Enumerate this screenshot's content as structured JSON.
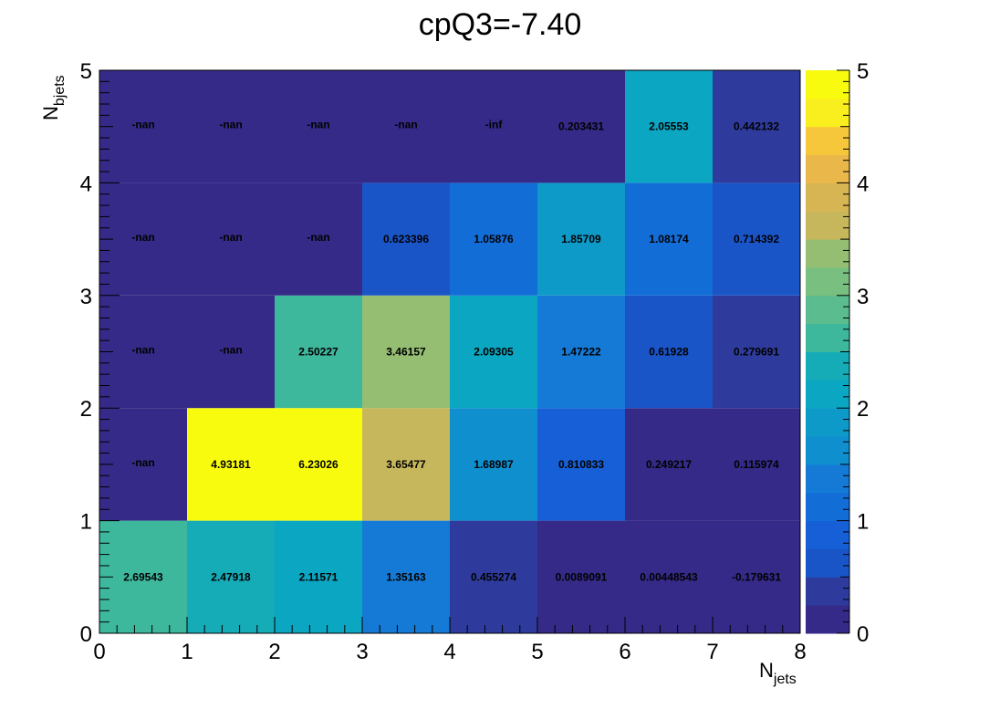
{
  "chart_data": {
    "type": "heatmap",
    "title": "cpQ3=-7.40",
    "xlabel": {
      "main": "N",
      "sub": "jets"
    },
    "ylabel": {
      "main": "N",
      "sub": "bjets"
    },
    "xlim": [
      0,
      8
    ],
    "ylim": [
      0,
      5
    ],
    "x_ticks": [
      "0",
      "1",
      "2",
      "3",
      "4",
      "5",
      "6",
      "7",
      "8"
    ],
    "y_ticks": [
      "0",
      "1",
      "2",
      "3",
      "4",
      "5"
    ],
    "x_bin_edges": [
      0,
      1,
      2,
      3,
      4,
      5,
      6,
      7,
      8
    ],
    "y_bin_edges": [
      0,
      1,
      2,
      3,
      4,
      5
    ],
    "colorbar": {
      "min": 0,
      "max": 5,
      "ncolors": 20,
      "ticks": [
        "0",
        "1",
        "2",
        "3",
        "4",
        "5"
      ],
      "palette": [
        "#352a87",
        "#2e3b9c",
        "#2a49ae",
        "#1a55c8",
        "#165fd6",
        "#126dd7",
        "#157ad6",
        "#1786d3",
        "#108fcf",
        "#0e9ac9",
        "#0ba6c2",
        "#15acb8",
        "#26b2aa",
        "#3eb89d",
        "#5bbc8f",
        "#78bf80",
        "#95be72",
        "#b1bb66",
        "#c7b75c",
        "#d8b553",
        "#eab84a",
        "#f7c73b",
        "#fbd92e",
        "#f9ee1e",
        "#f9fb0e"
      ]
    },
    "cells": [
      {
        "x": 0.5,
        "y": 0.5,
        "value": 2.69543,
        "label": "2.69543"
      },
      {
        "x": 1.5,
        "y": 0.5,
        "value": 2.47918,
        "label": "2.47918"
      },
      {
        "x": 2.5,
        "y": 0.5,
        "value": 2.11571,
        "label": "2.11571"
      },
      {
        "x": 3.5,
        "y": 0.5,
        "value": 1.35163,
        "label": "1.35163"
      },
      {
        "x": 4.5,
        "y": 0.5,
        "value": 0.455274,
        "label": "0.455274"
      },
      {
        "x": 5.5,
        "y": 0.5,
        "value": 0.0089091,
        "label": "0.0089091"
      },
      {
        "x": 6.5,
        "y": 0.5,
        "value": 0.00448543,
        "label": "0.00448543"
      },
      {
        "x": 7.5,
        "y": 0.5,
        "value": -0.179631,
        "label": "-0.179631"
      },
      {
        "x": 0.5,
        "y": 1.5,
        "value": null,
        "label": "-nan"
      },
      {
        "x": 1.5,
        "y": 1.5,
        "value": 4.93181,
        "label": "4.93181"
      },
      {
        "x": 2.5,
        "y": 1.5,
        "value": 6.23026,
        "label": "6.23026"
      },
      {
        "x": 3.5,
        "y": 1.5,
        "value": 3.65477,
        "label": "3.65477"
      },
      {
        "x": 4.5,
        "y": 1.5,
        "value": 1.68987,
        "label": "1.68987"
      },
      {
        "x": 5.5,
        "y": 1.5,
        "value": 0.810833,
        "label": "0.810833"
      },
      {
        "x": 6.5,
        "y": 1.5,
        "value": 0.249217,
        "label": "0.249217"
      },
      {
        "x": 7.5,
        "y": 1.5,
        "value": 0.115974,
        "label": "0.115974"
      },
      {
        "x": 0.5,
        "y": 2.5,
        "value": null,
        "label": "-nan"
      },
      {
        "x": 1.5,
        "y": 2.5,
        "value": null,
        "label": "-nan"
      },
      {
        "x": 2.5,
        "y": 2.5,
        "value": 2.50227,
        "label": "2.50227"
      },
      {
        "x": 3.5,
        "y": 2.5,
        "value": 3.46157,
        "label": "3.46157"
      },
      {
        "x": 4.5,
        "y": 2.5,
        "value": 2.09305,
        "label": "2.09305"
      },
      {
        "x": 5.5,
        "y": 2.5,
        "value": 1.47222,
        "label": "1.47222"
      },
      {
        "x": 6.5,
        "y": 2.5,
        "value": 0.61928,
        "label": "0.61928"
      },
      {
        "x": 7.5,
        "y": 2.5,
        "value": 0.279691,
        "label": "0.279691"
      },
      {
        "x": 0.5,
        "y": 3.5,
        "value": null,
        "label": "-nan"
      },
      {
        "x": 1.5,
        "y": 3.5,
        "value": null,
        "label": "-nan"
      },
      {
        "x": 2.5,
        "y": 3.5,
        "value": null,
        "label": "-nan"
      },
      {
        "x": 3.5,
        "y": 3.5,
        "value": 0.623396,
        "label": "0.623396"
      },
      {
        "x": 4.5,
        "y": 3.5,
        "value": 1.05876,
        "label": "1.05876"
      },
      {
        "x": 5.5,
        "y": 3.5,
        "value": 1.85709,
        "label": "1.85709"
      },
      {
        "x": 6.5,
        "y": 3.5,
        "value": 1.08174,
        "label": "1.08174"
      },
      {
        "x": 7.5,
        "y": 3.5,
        "value": 0.714392,
        "label": "0.714392"
      },
      {
        "x": 0.5,
        "y": 4.5,
        "value": null,
        "label": "-nan"
      },
      {
        "x": 1.5,
        "y": 4.5,
        "value": null,
        "label": "-nan"
      },
      {
        "x": 2.5,
        "y": 4.5,
        "value": null,
        "label": "-nan"
      },
      {
        "x": 3.5,
        "y": 4.5,
        "value": null,
        "label": "-nan"
      },
      {
        "x": 4.5,
        "y": 4.5,
        "value": null,
        "label": "-inf"
      },
      {
        "x": 5.5,
        "y": 4.5,
        "value": 0.203431,
        "label": "0.203431"
      },
      {
        "x": 6.5,
        "y": 4.5,
        "value": 2.05553,
        "label": "2.05553"
      },
      {
        "x": 7.5,
        "y": 4.5,
        "value": 0.442132,
        "label": "0.442132"
      }
    ]
  }
}
